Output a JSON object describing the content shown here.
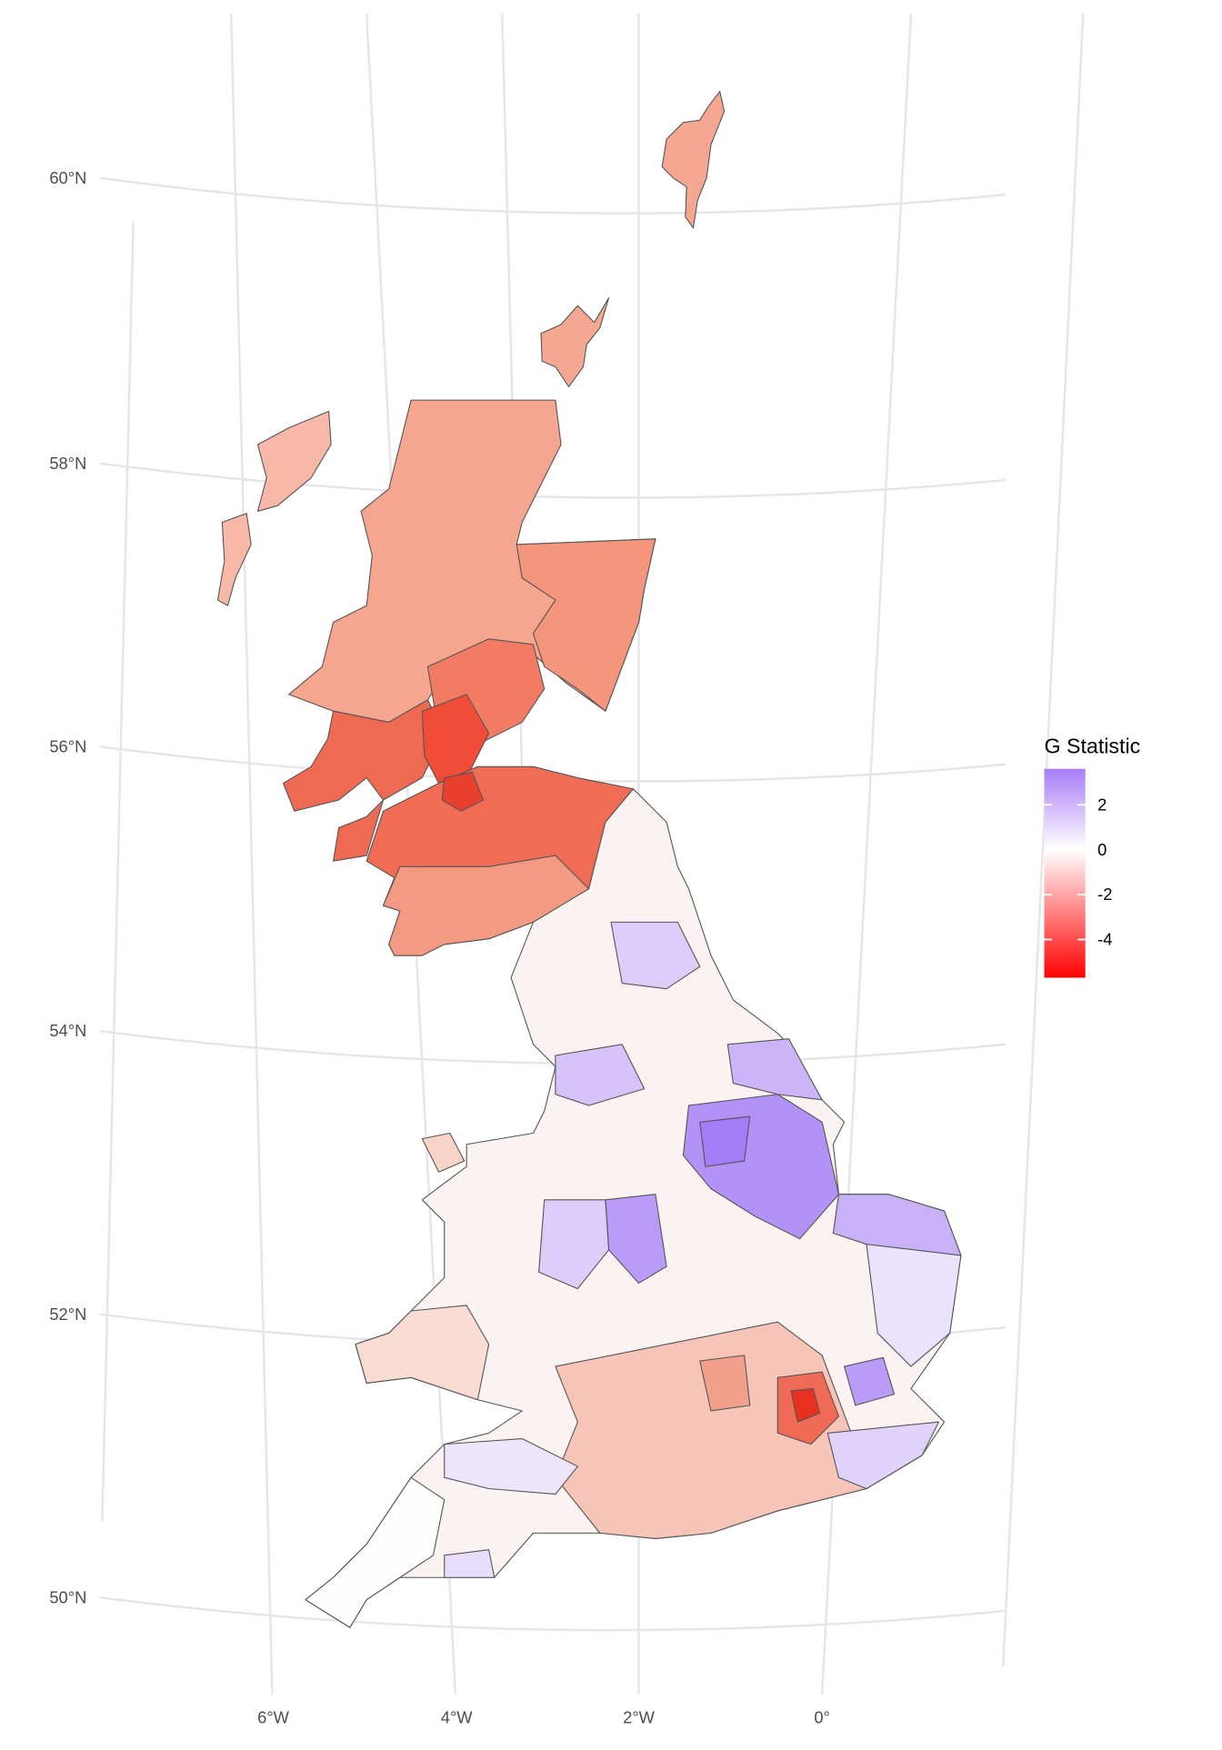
{
  "map": {
    "graticule": {
      "lat_labels": [
        "60°N",
        "58°N",
        "56°N",
        "54°N",
        "52°N",
        "50°N"
      ],
      "lon_labels": [
        "6°W",
        "4°W",
        "2°W",
        "0°"
      ]
    },
    "legend": {
      "title": "G Statistic",
      "limits": [
        -5.7,
        3.6
      ],
      "ticks": [
        2,
        0,
        -2,
        -4
      ],
      "colors": {
        "high": "#a97cf8",
        "mid": "#ffffff",
        "low": "#ff0000"
      }
    }
  }
}
